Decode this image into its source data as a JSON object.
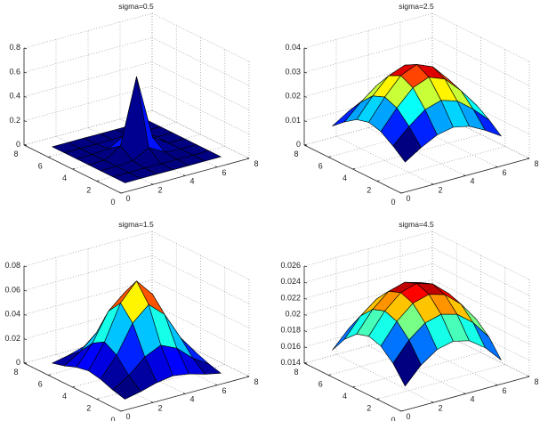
{
  "figure": {
    "colormap": "jet",
    "background": "#ffffff"
  },
  "chart_data": [
    {
      "type": "surface",
      "title": "sigma=0.5",
      "x": [
        1,
        2,
        3,
        4,
        5,
        6,
        7
      ],
      "y": [
        1,
        2,
        3,
        4,
        5,
        6,
        7
      ],
      "z": [
        [
          0,
          0,
          0,
          0,
          0,
          0,
          0
        ],
        [
          0,
          0,
          3e-05,
          0.00021,
          3e-05,
          0,
          0
        ],
        [
          0,
          3e-05,
          0.01134,
          0.08377,
          0.01134,
          3e-05,
          0
        ],
        [
          0,
          0.00021,
          0.08377,
          0.6187,
          0.08377,
          0.00021,
          0
        ],
        [
          0,
          3e-05,
          0.01134,
          0.08377,
          0.01134,
          3e-05,
          0
        ],
        [
          0,
          0,
          3e-05,
          0.00021,
          3e-05,
          0,
          0
        ],
        [
          0,
          0,
          0,
          0,
          0,
          0,
          0
        ]
      ],
      "xlim": [
        0,
        8
      ],
      "ylim": [
        0,
        8
      ],
      "zlim": [
        0,
        0.8
      ],
      "xticks": [
        "0",
        "2",
        "4",
        "6",
        "8"
      ],
      "yticks": [
        "0",
        "2",
        "4",
        "6",
        "8"
      ],
      "zticks": [
        "0",
        "0.2",
        "0.4",
        "0.6",
        "0.8"
      ],
      "grid": true
    },
    {
      "type": "surface",
      "title": "sigma=2.5",
      "x": [
        1,
        2,
        3,
        4,
        5,
        6,
        7
      ],
      "y": [
        1,
        2,
        3,
        4,
        5,
        6,
        7
      ],
      "z": [
        [
          0.008527,
          0.01272,
          0.01617,
          0.01752,
          0.01617,
          0.01272,
          0.008527
        ],
        [
          0.01272,
          0.01896,
          0.02411,
          0.02612,
          0.02411,
          0.01896,
          0.01272
        ],
        [
          0.01617,
          0.02411,
          0.03066,
          0.03322,
          0.03066,
          0.02411,
          0.01617
        ],
        [
          0.01752,
          0.02612,
          0.03322,
          0.03599,
          0.03322,
          0.02612,
          0.01752
        ],
        [
          0.01617,
          0.02411,
          0.03066,
          0.03322,
          0.03066,
          0.02411,
          0.01617
        ],
        [
          0.01272,
          0.01896,
          0.02411,
          0.02612,
          0.02411,
          0.01896,
          0.01272
        ],
        [
          0.008527,
          0.01272,
          0.01617,
          0.01752,
          0.01617,
          0.01272,
          0.008527
        ]
      ],
      "xlim": [
        0,
        8
      ],
      "ylim": [
        0,
        8
      ],
      "zlim": [
        0,
        0.04
      ],
      "xticks": [
        "0",
        "2",
        "4",
        "6",
        "8"
      ],
      "yticks": [
        "0",
        "2",
        "4",
        "6",
        "8"
      ],
      "zticks": [
        "0",
        "0.01",
        "0.02",
        "0.03",
        "0.04"
      ],
      "grid": true
    },
    {
      "type": "surface",
      "title": "sigma=1.5",
      "x": [
        1,
        2,
        3,
        4,
        5,
        6,
        7
      ],
      "y": [
        1,
        2,
        3,
        4,
        5,
        6,
        7
      ],
      "z": [
        [
          0.001342,
          0.004077,
          0.007938,
          0.009916,
          0.007938,
          0.004077,
          0.001342
        ],
        [
          0.004077,
          0.01239,
          0.02412,
          0.03013,
          0.02412,
          0.01239,
          0.004077
        ],
        [
          0.007938,
          0.02412,
          0.04696,
          0.05866,
          0.04696,
          0.02412,
          0.007938
        ],
        [
          0.009916,
          0.03013,
          0.05866,
          0.07328,
          0.05866,
          0.03013,
          0.009916
        ],
        [
          0.007938,
          0.02412,
          0.04696,
          0.05866,
          0.04696,
          0.02412,
          0.007938
        ],
        [
          0.004077,
          0.01239,
          0.02412,
          0.03013,
          0.02412,
          0.01239,
          0.004077
        ],
        [
          0.001342,
          0.004077,
          0.007938,
          0.009916,
          0.007938,
          0.004077,
          0.001342
        ]
      ],
      "xlim": [
        0,
        8
      ],
      "ylim": [
        0,
        8
      ],
      "zlim": [
        0,
        0.08
      ],
      "xticks": [
        "0",
        "2",
        "4",
        "6",
        "8"
      ],
      "yticks": [
        "0",
        "2",
        "4",
        "6",
        "8"
      ],
      "zticks": [
        "0",
        "0.02",
        "0.04",
        "0.06",
        "0.08"
      ],
      "grid": true
    },
    {
      "type": "surface",
      "title": "sigma=4.5",
      "x": [
        1,
        2,
        3,
        4,
        5,
        6,
        7
      ],
      "y": [
        1,
        2,
        3,
        4,
        5,
        6,
        7
      ],
      "z": [
        [
          0.01583,
          0.0179,
          0.01929,
          0.01976,
          0.01929,
          0.0179,
          0.01583
        ],
        [
          0.0179,
          0.02025,
          0.02181,
          0.02235,
          0.02181,
          0.02025,
          0.0179
        ],
        [
          0.01929,
          0.02181,
          0.0235,
          0.02408,
          0.0235,
          0.02181,
          0.01929
        ],
        [
          0.01976,
          0.02235,
          0.02408,
          0.02468,
          0.02408,
          0.02235,
          0.01976
        ],
        [
          0.01929,
          0.02181,
          0.0235,
          0.02408,
          0.0235,
          0.02181,
          0.01929
        ],
        [
          0.0179,
          0.02025,
          0.02181,
          0.02235,
          0.02181,
          0.02025,
          0.0179
        ],
        [
          0.01583,
          0.0179,
          0.01929,
          0.01976,
          0.01929,
          0.0179,
          0.01583
        ]
      ],
      "xlim": [
        0,
        8
      ],
      "ylim": [
        0,
        8
      ],
      "zlim": [
        0.014,
        0.026
      ],
      "xticks": [
        "0",
        "2",
        "4",
        "6",
        "8"
      ],
      "yticks": [
        "0",
        "2",
        "4",
        "6",
        "8"
      ],
      "zticks": [
        "0.014",
        "0.016",
        "0.018",
        "0.02",
        "0.022",
        "0.024",
        "0.026"
      ],
      "grid": true
    }
  ]
}
